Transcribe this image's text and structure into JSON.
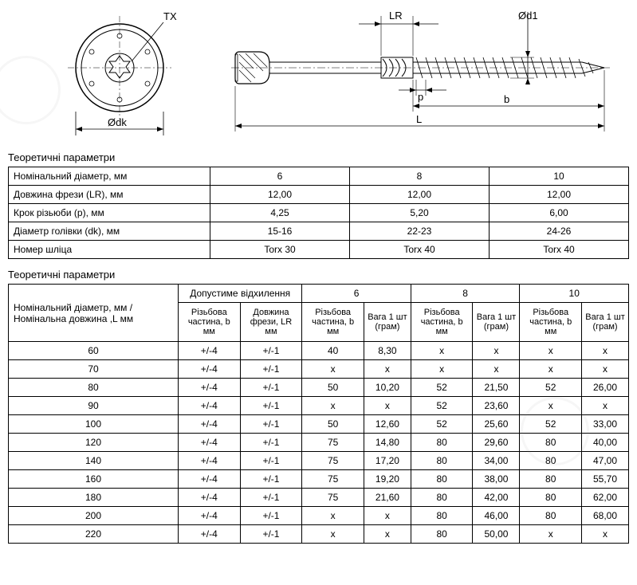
{
  "diagram": {
    "labels": {
      "TX": "TX",
      "LR": "LR",
      "p": "p",
      "b": "b",
      "L": "L",
      "d1": "Ød1",
      "dk": "Ødk"
    },
    "stroke": "#000000",
    "hatch": "#000000"
  },
  "section1_title": "Теоретичні параметри",
  "table1": {
    "rows": [
      {
        "label": "Номінальний діаметр, мм",
        "c6": "6",
        "c8": "8",
        "c10": "10"
      },
      {
        "label": "Довжина фрези (LR), мм",
        "c6": "12,00",
        "c8": "12,00",
        "c10": "12,00"
      },
      {
        "label": "Крок різьюби (p), мм",
        "c6": "4,25",
        "c8": "5,20",
        "c10": "6,00"
      },
      {
        "label": "Діаметр голівки (dk), мм",
        "c6": "15-16",
        "c8": "22-23",
        "c10": "24-26"
      },
      {
        "label": "Номер шліца",
        "c6": "Torx 30",
        "c8": "Torx 40",
        "c10": "Torx 40"
      }
    ]
  },
  "section2_title": "Теоретичні параметри",
  "table2": {
    "header": {
      "main_label": "Номінальний діаметр, мм / Номінальна довжина ,L мм",
      "tolerance": "Допустиме відхилення",
      "c6": "6",
      "c8": "8",
      "c10": "10",
      "sub_thread": "Різьбова частина, b мм",
      "sub_lr": "Довжина фрези, LR мм",
      "sub_weight": "Вага 1 шт (грам)"
    },
    "rows": [
      {
        "len": "60",
        "tol_b": "+/-4",
        "tol_lr": "+/-1",
        "b6": "40",
        "w6": "8,30",
        "b8": "x",
        "w8": "x",
        "b10": "x",
        "w10": "x"
      },
      {
        "len": "70",
        "tol_b": "+/-4",
        "tol_lr": "+/-1",
        "b6": "x",
        "w6": "x",
        "b8": "x",
        "w8": "x",
        "b10": "x",
        "w10": "x"
      },
      {
        "len": "80",
        "tol_b": "+/-4",
        "tol_lr": "+/-1",
        "b6": "50",
        "w6": "10,20",
        "b8": "52",
        "w8": "21,50",
        "b10": "52",
        "w10": "26,00"
      },
      {
        "len": "90",
        "tol_b": "+/-4",
        "tol_lr": "+/-1",
        "b6": "x",
        "w6": "x",
        "b8": "52",
        "w8": "23,60",
        "b10": "x",
        "w10": "x"
      },
      {
        "len": "100",
        "tol_b": "+/-4",
        "tol_lr": "+/-1",
        "b6": "50",
        "w6": "12,60",
        "b8": "52",
        "w8": "25,60",
        "b10": "52",
        "w10": "33,00"
      },
      {
        "len": "120",
        "tol_b": "+/-4",
        "tol_lr": "+/-1",
        "b6": "75",
        "w6": "14,80",
        "b8": "80",
        "w8": "29,60",
        "b10": "80",
        "w10": "40,00"
      },
      {
        "len": "140",
        "tol_b": "+/-4",
        "tol_lr": "+/-1",
        "b6": "75",
        "w6": "17,20",
        "b8": "80",
        "w8": "34,00",
        "b10": "80",
        "w10": "47,00"
      },
      {
        "len": "160",
        "tol_b": "+/-4",
        "tol_lr": "+/-1",
        "b6": "75",
        "w6": "19,20",
        "b8": "80",
        "w8": "38,00",
        "b10": "80",
        "w10": "55,70"
      },
      {
        "len": "180",
        "tol_b": "+/-4",
        "tol_lr": "+/-1",
        "b6": "75",
        "w6": "21,60",
        "b8": "80",
        "w8": "42,00",
        "b10": "80",
        "w10": "62,00"
      },
      {
        "len": "200",
        "tol_b": "+/-4",
        "tol_lr": "+/-1",
        "b6": "x",
        "w6": "x",
        "b8": "80",
        "w8": "46,00",
        "b10": "80",
        "w10": "68,00"
      },
      {
        "len": "220",
        "tol_b": "+/-4",
        "tol_lr": "+/-1",
        "b6": "x",
        "w6": "x",
        "b8": "80",
        "w8": "50,00",
        "b10": "x",
        "w10": "x"
      }
    ]
  }
}
